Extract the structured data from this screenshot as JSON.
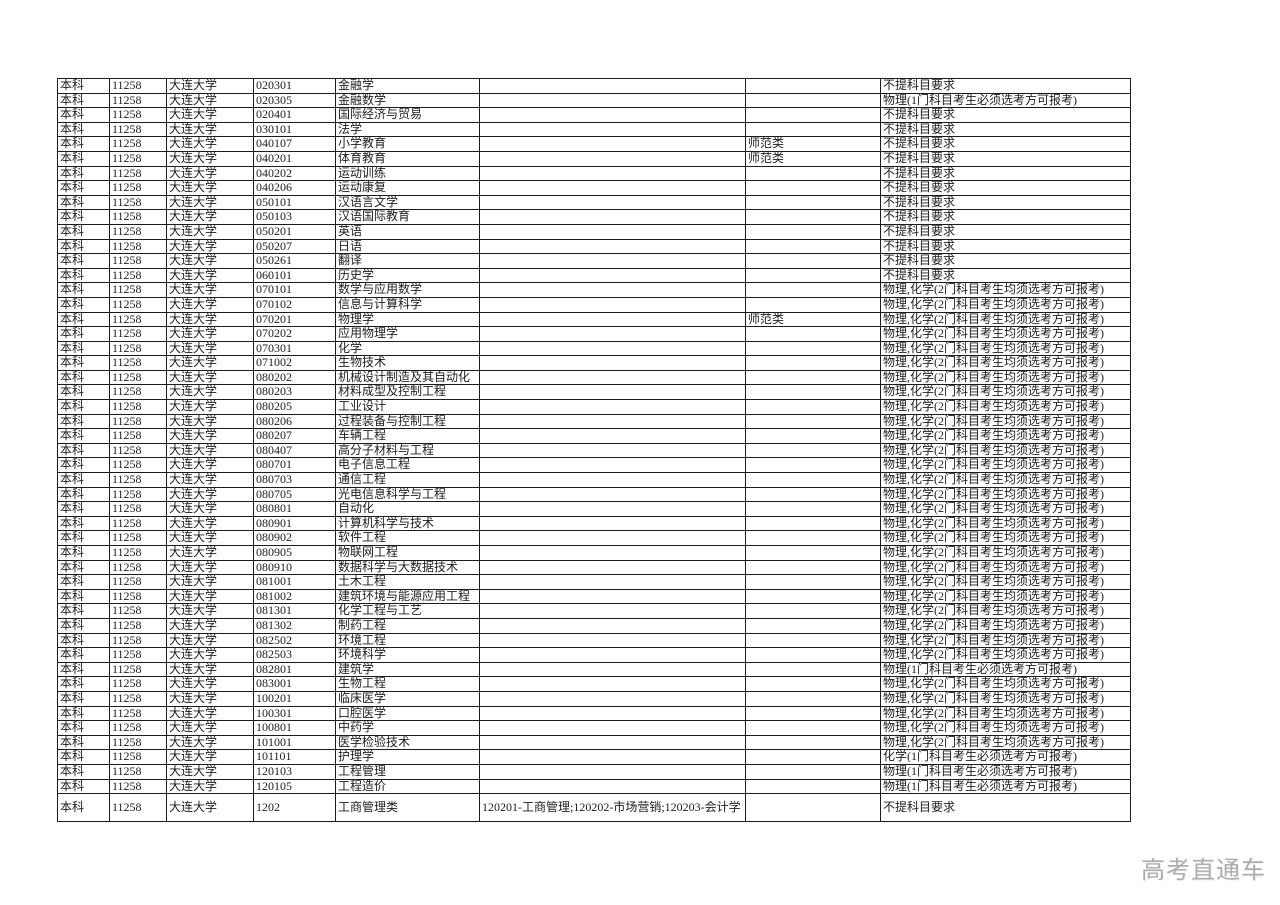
{
  "page": {
    "background_color": "#ffffff",
    "watermark": "高考直通车",
    "watermark_color": "#adadad",
    "border_color": "#1c1c1c",
    "text_color": "#1d1d1d"
  },
  "table": {
    "column_keys": [
      "level",
      "school_code",
      "school_name",
      "major_code",
      "major_name",
      "included_majors",
      "track_type",
      "subject_requirement"
    ],
    "rows": [
      [
        "本科",
        "11258",
        "大连大学",
        "020301",
        "金融学",
        "",
        "",
        "不提科目要求"
      ],
      [
        "本科",
        "11258",
        "大连大学",
        "020305",
        "金融数学",
        "",
        "",
        "物理(1门科目考生必须选考方可报考)"
      ],
      [
        "本科",
        "11258",
        "大连大学",
        "020401",
        "国际经济与贸易",
        "",
        "",
        "不提科目要求"
      ],
      [
        "本科",
        "11258",
        "大连大学",
        "030101",
        "法学",
        "",
        "",
        "不提科目要求"
      ],
      [
        "本科",
        "11258",
        "大连大学",
        "040107",
        "小学教育",
        "",
        "师范类",
        "不提科目要求"
      ],
      [
        "本科",
        "11258",
        "大连大学",
        "040201",
        "体育教育",
        "",
        "师范类",
        "不提科目要求"
      ],
      [
        "本科",
        "11258",
        "大连大学",
        "040202",
        "运动训练",
        "",
        "",
        "不提科目要求"
      ],
      [
        "本科",
        "11258",
        "大连大学",
        "040206",
        "运动康复",
        "",
        "",
        "不提科目要求"
      ],
      [
        "本科",
        "11258",
        "大连大学",
        "050101",
        "汉语言文学",
        "",
        "",
        "不提科目要求"
      ],
      [
        "本科",
        "11258",
        "大连大学",
        "050103",
        "汉语国际教育",
        "",
        "",
        "不提科目要求"
      ],
      [
        "本科",
        "11258",
        "大连大学",
        "050201",
        "英语",
        "",
        "",
        "不提科目要求"
      ],
      [
        "本科",
        "11258",
        "大连大学",
        "050207",
        "日语",
        "",
        "",
        "不提科目要求"
      ],
      [
        "本科",
        "11258",
        "大连大学",
        "050261",
        "翻译",
        "",
        "",
        "不提科目要求"
      ],
      [
        "本科",
        "11258",
        "大连大学",
        "060101",
        "历史学",
        "",
        "",
        "不提科目要求"
      ],
      [
        "本科",
        "11258",
        "大连大学",
        "070101",
        "数学与应用数学",
        "",
        "",
        "物理,化学(2门科目考生均须选考方可报考)"
      ],
      [
        "本科",
        "11258",
        "大连大学",
        "070102",
        "信息与计算科学",
        "",
        "",
        "物理,化学(2门科目考生均须选考方可报考)"
      ],
      [
        "本科",
        "11258",
        "大连大学",
        "070201",
        "物理学",
        "",
        "师范类",
        "物理,化学(2门科目考生均须选考方可报考)"
      ],
      [
        "本科",
        "11258",
        "大连大学",
        "070202",
        "应用物理学",
        "",
        "",
        "物理,化学(2门科目考生均须选考方可报考)"
      ],
      [
        "本科",
        "11258",
        "大连大学",
        "070301",
        "化学",
        "",
        "",
        "物理,化学(2门科目考生均须选考方可报考)"
      ],
      [
        "本科",
        "11258",
        "大连大学",
        "071002",
        "生物技术",
        "",
        "",
        "物理,化学(2门科目考生均须选考方可报考)"
      ],
      [
        "本科",
        "11258",
        "大连大学",
        "080202",
        "机械设计制造及其自动化",
        "",
        "",
        "物理,化学(2门科目考生均须选考方可报考)"
      ],
      [
        "本科",
        "11258",
        "大连大学",
        "080203",
        "材料成型及控制工程",
        "",
        "",
        "物理,化学(2门科目考生均须选考方可报考)"
      ],
      [
        "本科",
        "11258",
        "大连大学",
        "080205",
        "工业设计",
        "",
        "",
        "物理,化学(2门科目考生均须选考方可报考)"
      ],
      [
        "本科",
        "11258",
        "大连大学",
        "080206",
        "过程装备与控制工程",
        "",
        "",
        "物理,化学(2门科目考生均须选考方可报考)"
      ],
      [
        "本科",
        "11258",
        "大连大学",
        "080207",
        "车辆工程",
        "",
        "",
        "物理,化学(2门科目考生均须选考方可报考)"
      ],
      [
        "本科",
        "11258",
        "大连大学",
        "080407",
        "高分子材料与工程",
        "",
        "",
        "物理,化学(2门科目考生均须选考方可报考)"
      ],
      [
        "本科",
        "11258",
        "大连大学",
        "080701",
        "电子信息工程",
        "",
        "",
        "物理,化学(2门科目考生均须选考方可报考)"
      ],
      [
        "本科",
        "11258",
        "大连大学",
        "080703",
        "通信工程",
        "",
        "",
        "物理,化学(2门科目考生均须选考方可报考)"
      ],
      [
        "本科",
        "11258",
        "大连大学",
        "080705",
        "光电信息科学与工程",
        "",
        "",
        "物理,化学(2门科目考生均须选考方可报考)"
      ],
      [
        "本科",
        "11258",
        "大连大学",
        "080801",
        "自动化",
        "",
        "",
        "物理,化学(2门科目考生均须选考方可报考)"
      ],
      [
        "本科",
        "11258",
        "大连大学",
        "080901",
        "计算机科学与技术",
        "",
        "",
        "物理,化学(2门科目考生均须选考方可报考)"
      ],
      [
        "本科",
        "11258",
        "大连大学",
        "080902",
        "软件工程",
        "",
        "",
        "物理,化学(2门科目考生均须选考方可报考)"
      ],
      [
        "本科",
        "11258",
        "大连大学",
        "080905",
        "物联网工程",
        "",
        "",
        "物理,化学(2门科目考生均须选考方可报考)"
      ],
      [
        "本科",
        "11258",
        "大连大学",
        "080910",
        "数据科学与大数据技术",
        "",
        "",
        "物理,化学(2门科目考生均须选考方可报考)"
      ],
      [
        "本科",
        "11258",
        "大连大学",
        "081001",
        "土木工程",
        "",
        "",
        "物理,化学(2门科目考生均须选考方可报考)"
      ],
      [
        "本科",
        "11258",
        "大连大学",
        "081002",
        "建筑环境与能源应用工程",
        "",
        "",
        "物理,化学(2门科目考生均须选考方可报考)"
      ],
      [
        "本科",
        "11258",
        "大连大学",
        "081301",
        "化学工程与工艺",
        "",
        "",
        "物理,化学(2门科目考生均须选考方可报考)"
      ],
      [
        "本科",
        "11258",
        "大连大学",
        "081302",
        "制药工程",
        "",
        "",
        "物理,化学(2门科目考生均须选考方可报考)"
      ],
      [
        "本科",
        "11258",
        "大连大学",
        "082502",
        "环境工程",
        "",
        "",
        "物理,化学(2门科目考生均须选考方可报考)"
      ],
      [
        "本科",
        "11258",
        "大连大学",
        "082503",
        "环境科学",
        "",
        "",
        "物理,化学(2门科目考生均须选考方可报考)"
      ],
      [
        "本科",
        "11258",
        "大连大学",
        "082801",
        "建筑学",
        "",
        "",
        "物理(1门科目考生必须选考方可报考)"
      ],
      [
        "本科",
        "11258",
        "大连大学",
        "083001",
        "生物工程",
        "",
        "",
        "物理,化学(2门科目考生均须选考方可报考)"
      ],
      [
        "本科",
        "11258",
        "大连大学",
        "100201",
        "临床医学",
        "",
        "",
        "物理,化学(2门科目考生均须选考方可报考)"
      ],
      [
        "本科",
        "11258",
        "大连大学",
        "100301",
        "口腔医学",
        "",
        "",
        "物理,化学(2门科目考生均须选考方可报考)"
      ],
      [
        "本科",
        "11258",
        "大连大学",
        "100801",
        "中药学",
        "",
        "",
        "物理,化学(2门科目考生均须选考方可报考)"
      ],
      [
        "本科",
        "11258",
        "大连大学",
        "101001",
        "医学检验技术",
        "",
        "",
        "物理,化学(2门科目考生均须选考方可报考)"
      ],
      [
        "本科",
        "11258",
        "大连大学",
        "101101",
        "护理学",
        "",
        "",
        "化学(1门科目考生必须选考方可报考)"
      ],
      [
        "本科",
        "11258",
        "大连大学",
        "120103",
        "工程管理",
        "",
        "",
        "物理(1门科目考生必须选考方可报考)"
      ],
      [
        "本科",
        "11258",
        "大连大学",
        "120105",
        "工程造价",
        "",
        "",
        "物理(1门科目考生必须选考方可报考)"
      ],
      [
        "本科",
        "11258",
        "大连大学",
        "1202",
        "工商管理类",
        "120201-工商管理;120202-市场营销;120203-会计学",
        "",
        "不提科目要求"
      ]
    ]
  }
}
